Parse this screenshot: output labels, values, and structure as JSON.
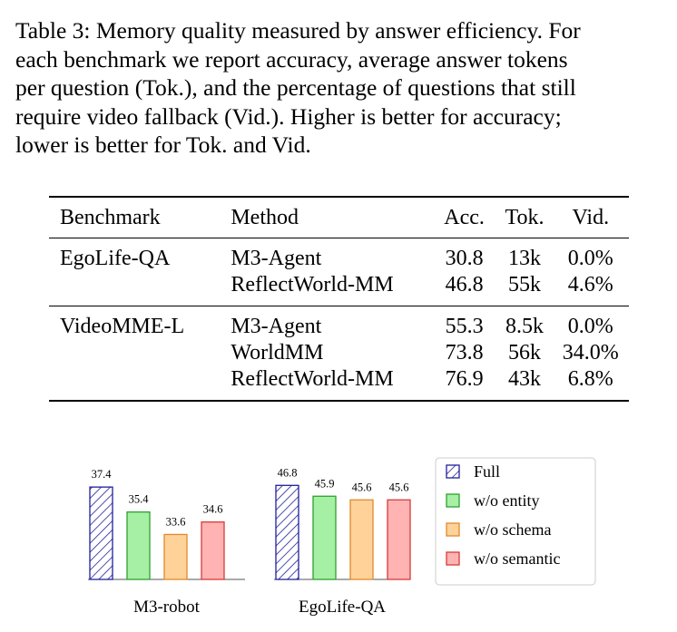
{
  "caption": {
    "lines": [
      "Table 3: Memory quality measured by answer efficiency. For",
      "each benchmark we report accuracy, average answer tokens",
      "per question (Tok.), and the percentage of questions that still",
      "require video fallback (Vid.). Higher is better for accuracy;",
      "lower is better for Tok. and Vid."
    ]
  },
  "table": {
    "headers": [
      "Benchmark",
      "Method",
      "Acc.",
      "Tok.",
      "Vid."
    ],
    "groups": [
      {
        "benchmark": "EgoLife-QA",
        "rows": [
          {
            "method": "M3-Agent",
            "acc": "30.8",
            "tok": "13k",
            "vid": "0.0%",
            "bold": false
          },
          {
            "method": "ReflectWorld-MM",
            "acc": "46.8",
            "tok": "55k",
            "vid": "4.6%",
            "bold": true
          }
        ]
      },
      {
        "benchmark": "VideoMME-L",
        "rows": [
          {
            "method": "M3-Agent",
            "acc": "55.3",
            "tok": "8.5k",
            "vid": "0.0%",
            "bold": false
          },
          {
            "method": "WorldMM",
            "acc": "73.8",
            "tok": "56k",
            "vid": "34.0%",
            "bold": false
          },
          {
            "method": "ReflectWorld-MM",
            "acc": "76.9",
            "tok": "43k",
            "vid": "6.8%",
            "bold": true
          }
        ]
      }
    ]
  },
  "chart_data": {
    "type": "bar",
    "categories": [
      "M3-robot",
      "EgoLife-QA"
    ],
    "series": [
      {
        "name": "Full",
        "values": [
          37.4,
          46.8
        ],
        "color": "#1f1f9a",
        "pattern": "hatch"
      },
      {
        "name": "w/o entity",
        "values": [
          35.4,
          45.9
        ],
        "color": "#a6f0a6",
        "stroke": "#2ea02e"
      },
      {
        "name": "w/o schema",
        "values": [
          33.6,
          45.6
        ],
        "color": "#ffd29a",
        "stroke": "#e08a2a"
      },
      {
        "name": "w/o semantic",
        "values": [
          34.6,
          45.6
        ],
        "color": "#ffb3b3",
        "stroke": "#d93a3a"
      }
    ],
    "ylim_per_category": [
      [
        30,
        38.5
      ],
      [
        39,
        47.8
      ]
    ],
    "legend_position": "right",
    "grid": false
  }
}
